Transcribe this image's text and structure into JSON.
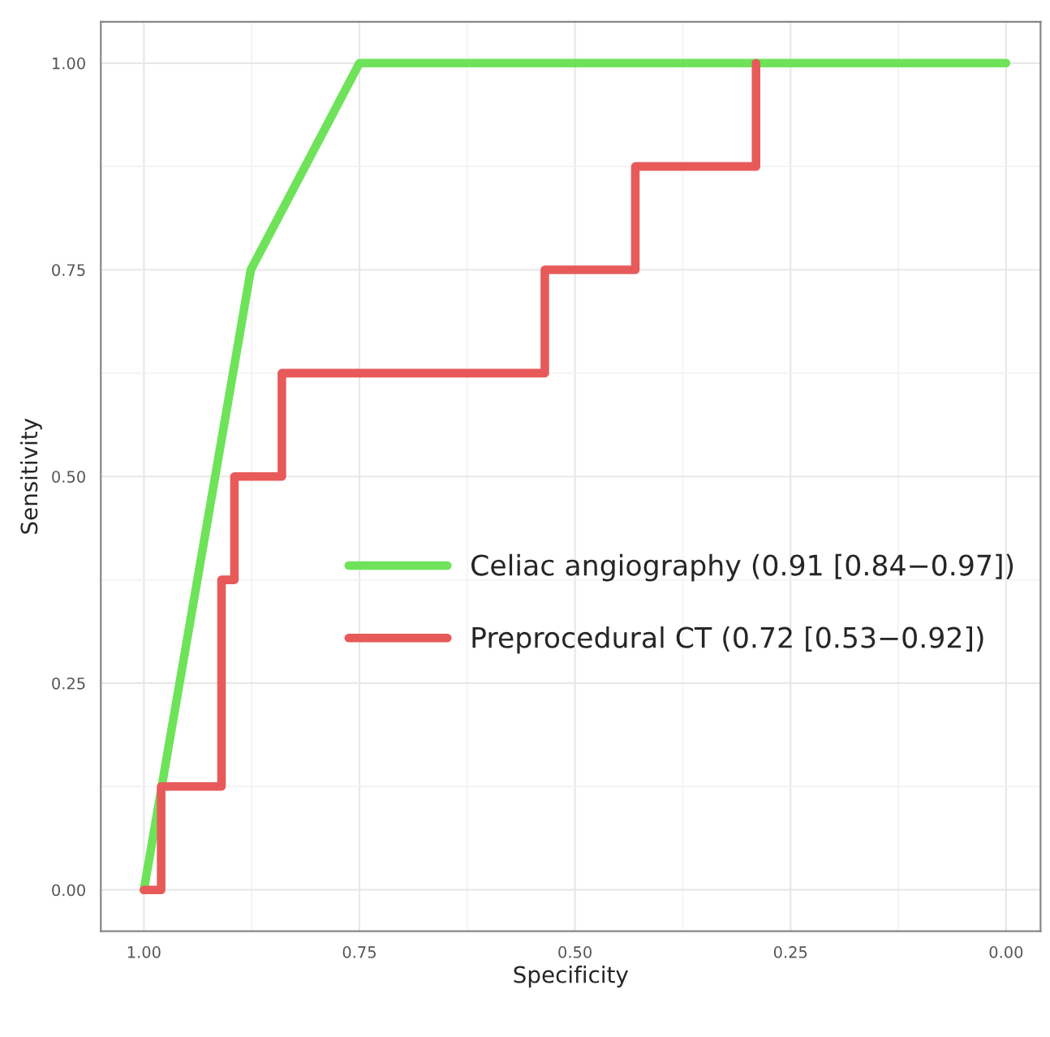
{
  "chart_data": {
    "type": "line",
    "xlabel": "Specificity",
    "ylabel": "Sensitivity",
    "series": [
      {
        "name": "Celiac angiography (0.91 [0.84−0.97])",
        "color": "#6ee35a",
        "x": [
          1.0,
          0.876,
          0.75,
          0.0
        ],
        "values": [
          0.0,
          0.75,
          1.0,
          1.0
        ]
      },
      {
        "name": "Preprocedural CT (0.72 [0.53−0.92])",
        "color": "#e85a5a",
        "x": [
          1.0,
          0.98,
          0.98,
          0.91,
          0.91,
          0.895,
          0.895,
          0.84,
          0.84,
          0.535,
          0.535,
          0.43,
          0.43,
          0.29,
          0.29
        ],
        "values": [
          0.0,
          0.0,
          0.125,
          0.125,
          0.375,
          0.375,
          0.5,
          0.5,
          0.625,
          0.625,
          0.75,
          0.75,
          0.875,
          0.875,
          1.0
        ]
      }
    ],
    "xlim": [
      1.05,
      -0.04
    ],
    "ylim": [
      -0.05,
      1.05
    ],
    "xticks": [
      {
        "value": 1.0,
        "label": "1.00"
      },
      {
        "value": 0.75,
        "label": "0.75"
      },
      {
        "value": 0.5,
        "label": "0.50"
      },
      {
        "value": 0.25,
        "label": "0.25"
      },
      {
        "value": 0.0,
        "label": "0.00"
      }
    ],
    "yticks": [
      {
        "value": 0.0,
        "label": "0.00"
      },
      {
        "value": 0.25,
        "label": "0.25"
      },
      {
        "value": 0.5,
        "label": "0.50"
      },
      {
        "value": 0.75,
        "label": "0.75"
      },
      {
        "value": 1.0,
        "label": "1.00"
      }
    ],
    "grid": true,
    "legend": "right",
    "line_style": "solid",
    "marker": "none"
  }
}
